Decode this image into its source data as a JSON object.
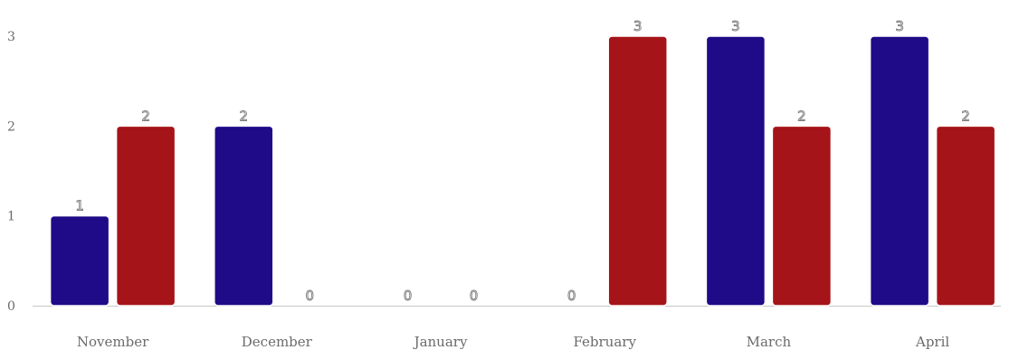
{
  "chart_data": {
    "type": "bar",
    "categories": [
      "November",
      "December",
      "January",
      "February",
      "March",
      "April"
    ],
    "series": [
      {
        "color": "#1f0a87",
        "values": [
          1,
          2,
          0,
          0,
          3,
          3
        ]
      },
      {
        "color": "#a51419",
        "values": [
          2,
          0,
          0,
          3,
          2,
          2
        ]
      }
    ],
    "y_ticks": [
      0,
      1,
      2,
      3
    ],
    "ylim": [
      0,
      3
    ],
    "show_data_labels": true,
    "grid": false,
    "legend": "none",
    "title": "",
    "xlabel": "",
    "ylabel": ""
  }
}
